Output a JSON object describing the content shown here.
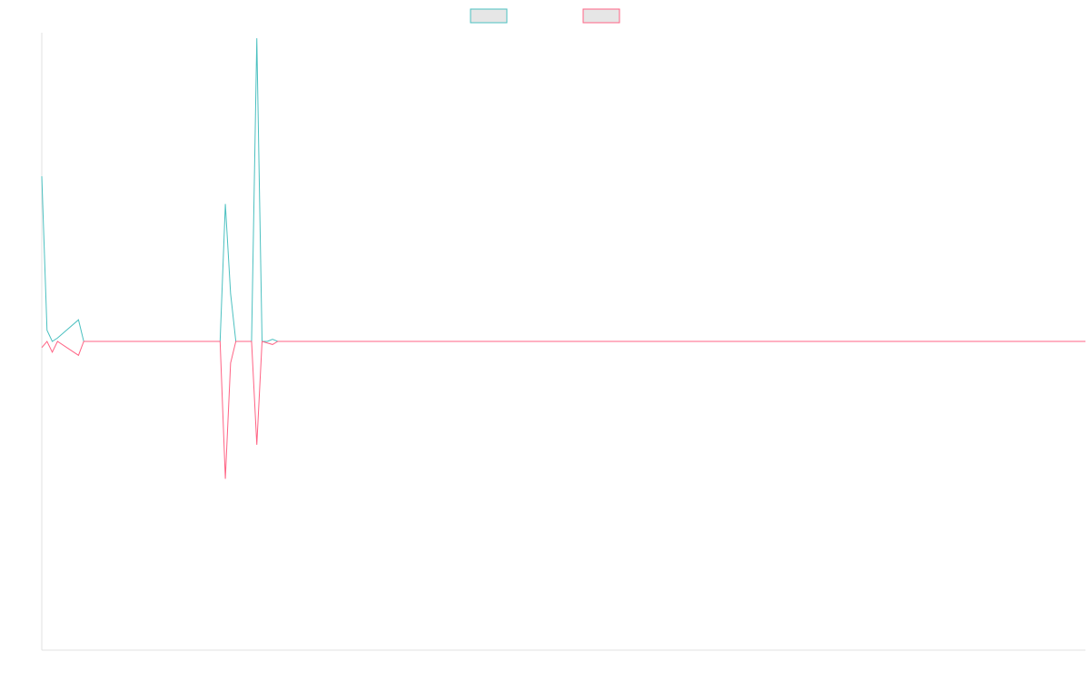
{
  "chart_data": {
    "type": "line",
    "title": "",
    "xlabel": "",
    "ylabel": "",
    "grid": false,
    "legend": {
      "placement": "top-center",
      "entries": [
        {
          "name": "",
          "color": "#4bc0c0",
          "fill": "#e6e6e6"
        },
        {
          "name": "",
          "color": "#ff6384",
          "fill": "#e6e6e6"
        }
      ]
    },
    "x_count": 200,
    "ylim": [
      -1,
      1
    ],
    "series": [
      {
        "name": "",
        "color": "#4bc0c0",
        "points": [
          [
            0,
            0.535
          ],
          [
            1,
            0.036
          ],
          [
            2,
            0.0
          ],
          [
            3,
            0.011
          ],
          [
            7,
            0.07
          ],
          [
            8,
            0.0
          ],
          [
            34,
            0.0
          ],
          [
            35,
            0.445
          ],
          [
            36,
            0.155
          ],
          [
            37,
            0.0
          ],
          [
            40,
            0.0
          ],
          [
            41,
            0.982
          ],
          [
            42,
            0.0
          ],
          [
            43,
            0.0
          ],
          [
            44,
            0.007
          ],
          [
            45,
            0.0
          ],
          [
            199,
            0.0
          ]
        ]
      },
      {
        "name": "",
        "color": "#ff6384",
        "points": [
          [
            0,
            -0.02
          ],
          [
            1,
            0.0
          ],
          [
            2,
            -0.035
          ],
          [
            3,
            0.0
          ],
          [
            7,
            -0.045
          ],
          [
            8,
            0.0
          ],
          [
            34,
            0.0
          ],
          [
            35,
            -0.445
          ],
          [
            36,
            -0.07
          ],
          [
            37,
            0.0
          ],
          [
            40,
            0.0
          ],
          [
            41,
            -0.335
          ],
          [
            42,
            0.0
          ],
          [
            44,
            -0.01
          ],
          [
            45,
            0.0
          ],
          [
            199,
            0.0
          ]
        ]
      }
    ]
  }
}
